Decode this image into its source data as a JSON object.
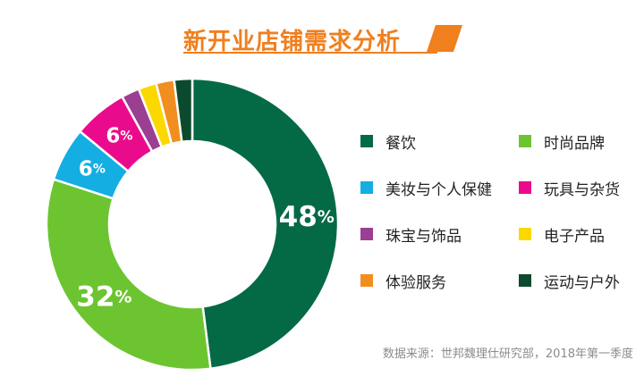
{
  "title": "新开业店铺需求分析",
  "source": "数据来源：世邦魏理仕研究部，2018年第一季度",
  "colors": {
    "title": "#f07f1e",
    "flag": "#f07f1e"
  },
  "chart_data": {
    "type": "pie",
    "title": "新开业店铺需求分析",
    "categories": [
      "餐饮",
      "时尚品牌",
      "美妆与个人保健",
      "玩具与杂货",
      "珠宝与饰品",
      "电子产品",
      "体验服务",
      "运动与户外"
    ],
    "values": [
      48,
      32,
      6,
      6,
      2,
      2,
      2,
      2
    ],
    "labels": [
      "48%",
      "32%",
      "6%",
      "6%",
      "",
      "",
      "",
      ""
    ],
    "colors": [
      "#046a46",
      "#6cc530",
      "#14aee2",
      "#ea0b8c",
      "#9b3f93",
      "#fbd800",
      "#f28d1f",
      "#0c4a2e"
    ],
    "legend": "right"
  }
}
